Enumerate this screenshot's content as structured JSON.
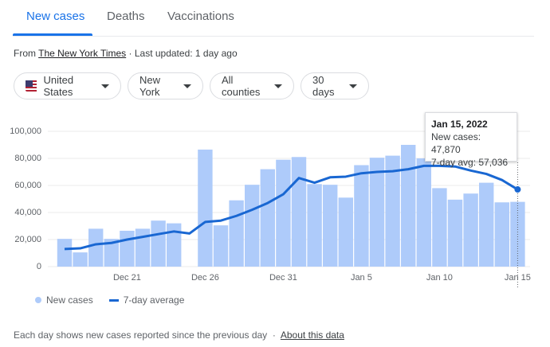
{
  "tabs": [
    "New cases",
    "Deaths",
    "Vaccinations"
  ],
  "source": {
    "prefix": "From",
    "link": "The New York Times",
    "updated": "· Last updated: 1 day ago"
  },
  "filters": [
    "United States",
    "New York",
    "All counties",
    "30 days"
  ],
  "tooltip": {
    "title": "Jan 15, 2022",
    "lines": [
      "New cases: 47,870",
      "7-day avg: 57,036"
    ]
  },
  "footer": {
    "text": "Each day shows new cases reported since the previous day",
    "separator": "·",
    "link": "About this data"
  },
  "chart_data": {
    "type": "bar",
    "categories": [
      null,
      null,
      null,
      null,
      "Dec 21",
      null,
      null,
      null,
      null,
      "Dec 26",
      null,
      null,
      null,
      null,
      "Dec 31",
      null,
      null,
      null,
      null,
      "Jan 5",
      null,
      null,
      null,
      null,
      "Jan 10",
      null,
      null,
      null,
      null,
      "Jan 15"
    ],
    "series": [
      {
        "name": "New cases",
        "type": "bar",
        "color": "#aecbfa",
        "values": [
          20500,
          10500,
          28000,
          20500,
          26500,
          28000,
          34000,
          32000,
          null,
          86500,
          30500,
          49000,
          60500,
          72000,
          79000,
          81000,
          61000,
          60500,
          51000,
          75000,
          80500,
          82000,
          90000,
          80000,
          58000,
          49500,
          54000,
          62000,
          47500,
          47870
        ]
      },
      {
        "name": "7-day average",
        "type": "line",
        "color": "#1967d2",
        "values": [
          13000,
          13500,
          16500,
          17500,
          20000,
          22000,
          24000,
          26000,
          24500,
          33000,
          34000,
          37500,
          42000,
          47000,
          53500,
          65500,
          62000,
          66000,
          66500,
          69000,
          70000,
          70500,
          72000,
          74500,
          74500,
          74000,
          71000,
          68500,
          64000,
          57036
        ]
      }
    ],
    "ylim": [
      0,
      100000
    ],
    "yticks": [
      0,
      {
        "value": 20000,
        "label": "20,000"
      },
      {
        "value": 40000,
        "label": "40,000"
      },
      {
        "value": 60000,
        "label": "60,000"
      },
      {
        "value": 80000,
        "label": "80,000"
      },
      {
        "value": 100000,
        "label": "100,000"
      }
    ],
    "grid": true
  }
}
